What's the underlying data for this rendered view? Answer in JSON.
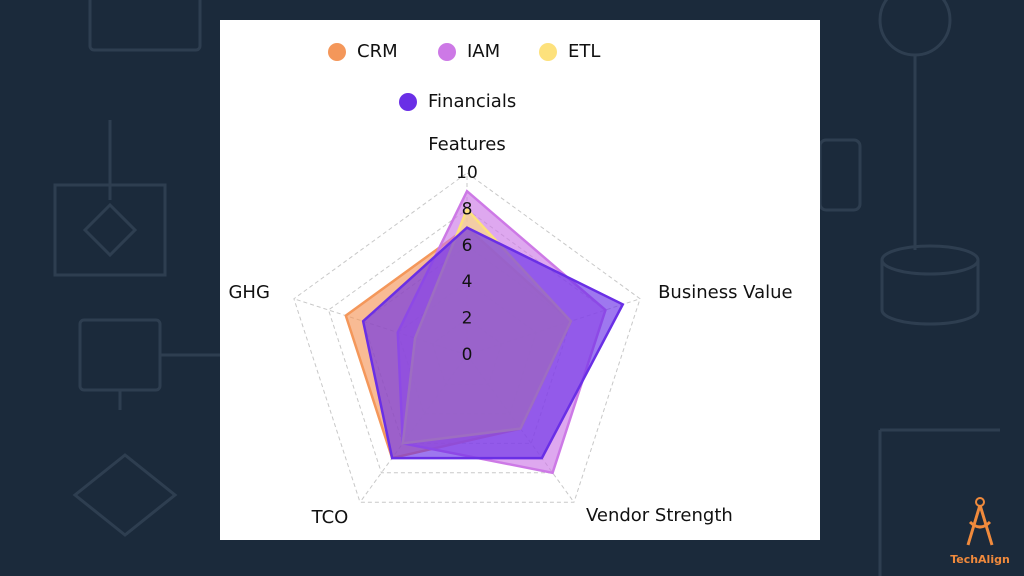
{
  "brand": "TechAlign",
  "chart_data": {
    "type": "radar",
    "categories": [
      "Features",
      "Business Value",
      "Vendor Strength",
      "TCO",
      "GHG"
    ],
    "series": [
      {
        "name": "CRM",
        "color": "#f4975a",
        "values": [
          7,
          6,
          5,
          7,
          7
        ]
      },
      {
        "name": "IAM",
        "color": "#cd79e6",
        "values": [
          9,
          8,
          8,
          6,
          4
        ]
      },
      {
        "name": "ETL",
        "color": "#fde17c",
        "values": [
          8,
          6,
          5,
          6,
          3
        ]
      },
      {
        "name": "Financials",
        "color": "#6a2fe6",
        "values": [
          7,
          9,
          7,
          7,
          6
        ]
      }
    ],
    "rlim": [
      0,
      10
    ],
    "rticks": [
      0,
      2,
      4,
      6,
      8,
      10
    ],
    "grid": true
  }
}
